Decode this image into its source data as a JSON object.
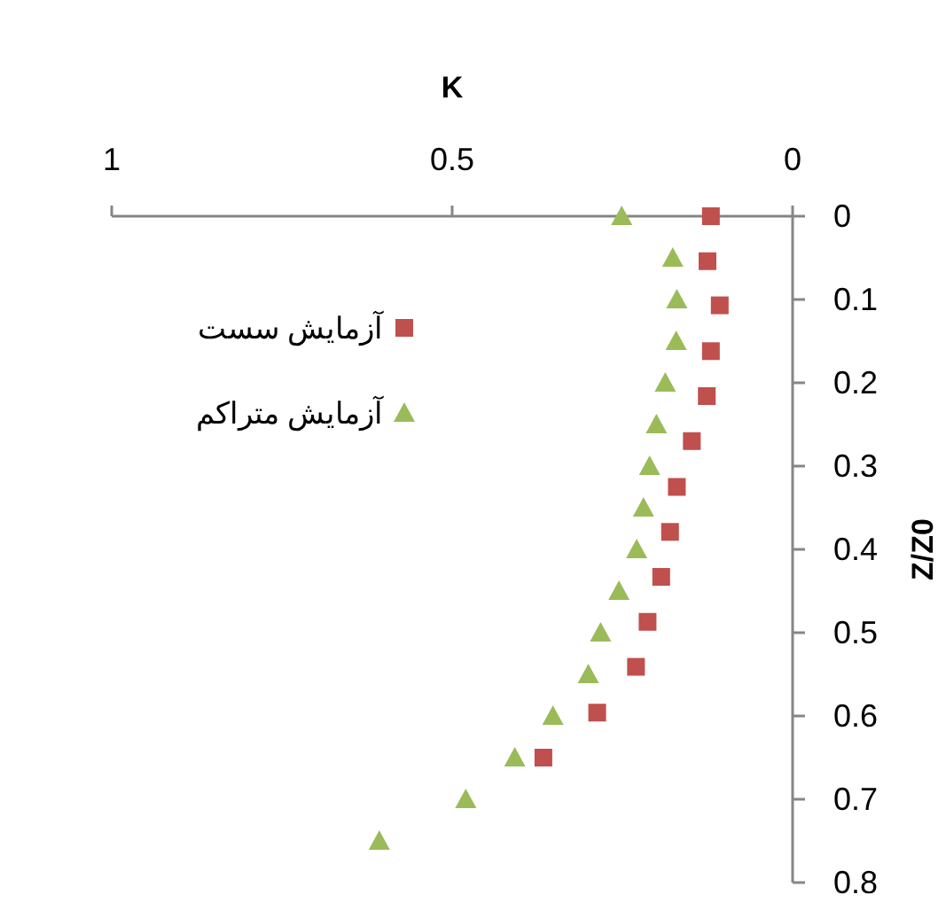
{
  "chart_data": {
    "type": "scatter",
    "xlabel": "K",
    "ylabel": "Z/Z0",
    "xlim": [
      1,
      0
    ],
    "ylim": [
      0.8,
      0
    ],
    "xticks": [
      1,
      0.5,
      0
    ],
    "yticks": [
      0,
      0.1,
      0.2,
      0.3,
      0.4,
      0.5,
      0.6,
      0.7,
      0.8
    ],
    "legend": "left",
    "series": [
      {
        "name": "آزمایش سست",
        "color": "#c0504d",
        "marker": "square",
        "x": [
          0.12,
          0.125,
          0.107,
          0.12,
          0.126,
          0.148,
          0.17,
          0.18,
          0.193,
          0.213,
          0.23,
          0.287,
          0.366
        ],
        "values": [
          0,
          0.054,
          0.107,
          0.162,
          0.216,
          0.27,
          0.325,
          0.379,
          0.433,
          0.487,
          0.541,
          0.596,
          0.65
        ]
      },
      {
        "name": "آزمایش متراکم",
        "color": "#9bbb59",
        "marker": "triangle",
        "x": [
          0.251,
          0.176,
          0.17,
          0.171,
          0.187,
          0.2,
          0.21,
          0.219,
          0.229,
          0.255,
          0.282,
          0.3,
          0.352,
          0.408,
          0.48,
          0.607
        ],
        "values": [
          0,
          0.05,
          0.1,
          0.15,
          0.2,
          0.25,
          0.3,
          0.35,
          0.4,
          0.45,
          0.5,
          0.55,
          0.6,
          0.65,
          0.7,
          0.75
        ]
      }
    ]
  }
}
